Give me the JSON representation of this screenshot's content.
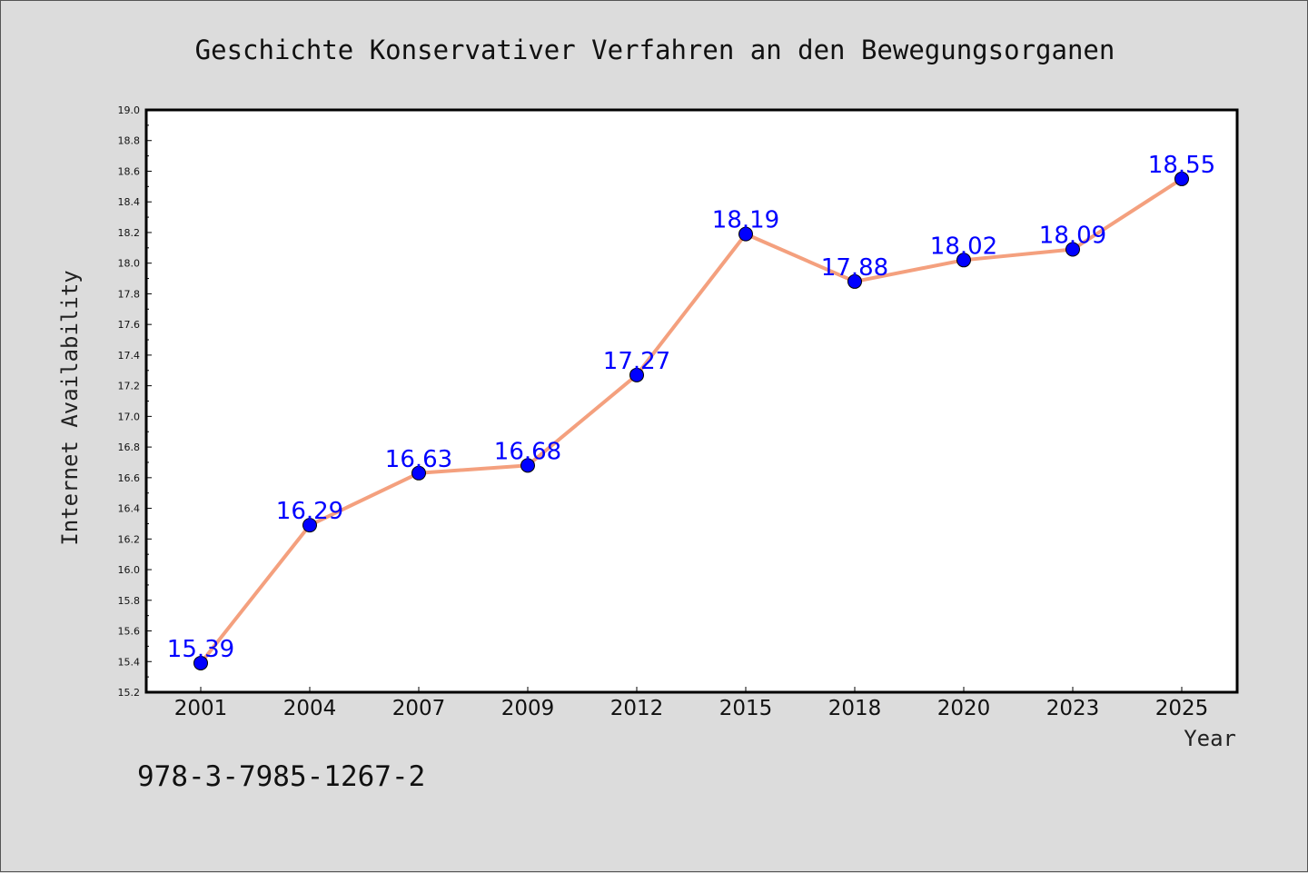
{
  "chart_data": {
    "type": "line",
    "title": "Geschichte Konservativer Verfahren an den Bewegungsorganen",
    "xlabel": "Year",
    "ylabel": "Internet Availability",
    "categories": [
      "2001",
      "2004",
      "2007",
      "2009",
      "2012",
      "2015",
      "2018",
      "2020",
      "2023",
      "2025"
    ],
    "values": [
      15.39,
      16.29,
      16.63,
      16.68,
      17.27,
      18.19,
      17.88,
      18.02,
      18.09,
      18.55
    ],
    "ylim": [
      15.2,
      19.0
    ],
    "yticks": [
      "15.2",
      "15.4",
      "15.6",
      "15.8",
      "16.0",
      "16.2",
      "16.4",
      "16.6",
      "16.8",
      "17.0",
      "17.2",
      "17.4",
      "17.6",
      "17.8",
      "18.0",
      "18.2",
      "18.4",
      "18.6",
      "18.8",
      "19.0"
    ],
    "line_color": "#f4a07e",
    "marker_color": "#0000ff",
    "label_color": "#0000ff",
    "grid": false,
    "legend": "none"
  },
  "footer": {
    "isbn": "978-3-7985-1267-2"
  }
}
